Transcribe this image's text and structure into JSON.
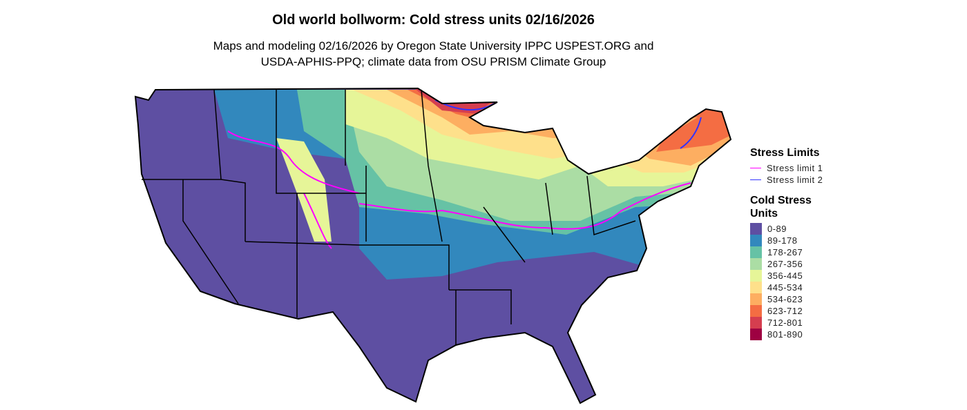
{
  "title": "Old world bollworm: Cold stress units 02/16/2026",
  "subtitle_line1": "Maps and modeling 02/16/2026 by Oregon State University IPPC USPEST.ORG and",
  "subtitle_line2": "USDA-APHIS-PPQ; climate data from OSU PRISM Climate Group",
  "legend": {
    "stress_title": "Stress Limits",
    "stress_items": [
      {
        "label": "Stress limit 1",
        "color": "#FF00FF"
      },
      {
        "label": "Stress limit 2",
        "color": "#3333FF"
      }
    ],
    "units_title_line1": "Cold Stress",
    "units_title_line2": "Units",
    "bins": [
      {
        "label": "0-89",
        "color": "#5E4FA2"
      },
      {
        "label": "89-178",
        "color": "#3288BD"
      },
      {
        "label": "178-267",
        "color": "#66C2A5"
      },
      {
        "label": "267-356",
        "color": "#ABDDA4"
      },
      {
        "label": "356-445",
        "color": "#E6F598"
      },
      {
        "label": "445-534",
        "color": "#FEE08B"
      },
      {
        "label": "534-623",
        "color": "#FDAE61"
      },
      {
        "label": "623-712",
        "color": "#F46D43"
      },
      {
        "label": "712-801",
        "color": "#D53E4F"
      },
      {
        "label": "801-890",
        "color": "#9E0142"
      }
    ]
  }
}
